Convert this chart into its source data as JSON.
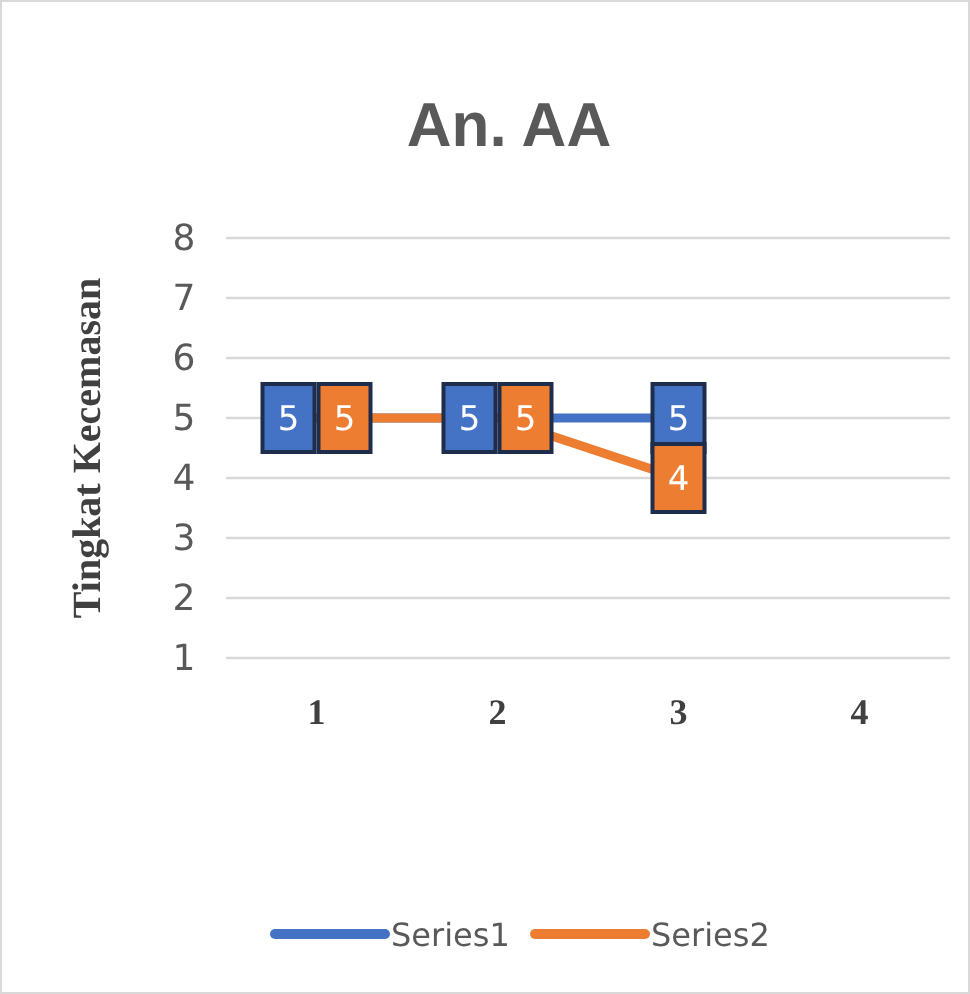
{
  "chart_data": {
    "type": "line",
    "title": "An. AA",
    "ylabel": "Tingkat Kecemasan",
    "categories": [
      "1",
      "2",
      "3",
      "4"
    ],
    "series": [
      {
        "name": "Series1",
        "color": "#4472c4",
        "values": [
          5,
          5,
          5,
          null
        ]
      },
      {
        "name": "Series2",
        "color": "#ed7d31",
        "values": [
          5,
          5,
          4,
          null
        ]
      }
    ],
    "ylim": [
      1,
      8
    ],
    "yticks": [
      1,
      2,
      3,
      4,
      5,
      6,
      7,
      8
    ],
    "grid": "y",
    "legend": "bottom",
    "data_labels": true,
    "marker": "none"
  }
}
